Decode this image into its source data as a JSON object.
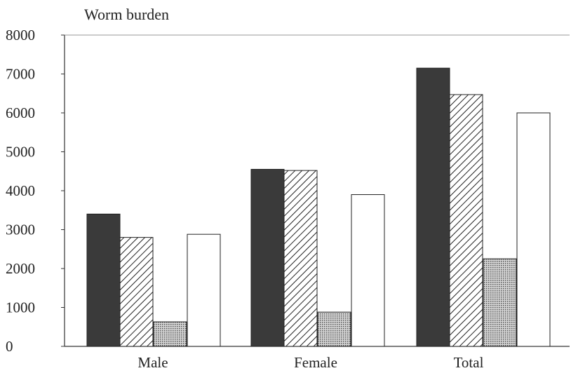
{
  "chart_data": {
    "type": "bar",
    "title": "Worm burden",
    "categories": [
      "Male",
      "Female",
      "Total"
    ],
    "series": [
      {
        "values": [
          3400,
          4550,
          7150
        ],
        "color": "#3a3a3a",
        "pattern": "solid"
      },
      {
        "values": [
          2800,
          4520,
          6470
        ],
        "color": "#222222",
        "pattern": "hatch"
      },
      {
        "values": [
          630,
          880,
          2250
        ],
        "color": "#9a9a9a",
        "pattern": "dots"
      },
      {
        "values": [
          2880,
          3900,
          6000
        ],
        "color": "#ffffff",
        "pattern": "none"
      }
    ],
    "yticks": [
      "0",
      "1000",
      "2000",
      "3000",
      "4000",
      "5000",
      "6000",
      "7000",
      "8000"
    ],
    "ylim": [
      0,
      8000
    ],
    "grid": false,
    "legend": "none"
  }
}
